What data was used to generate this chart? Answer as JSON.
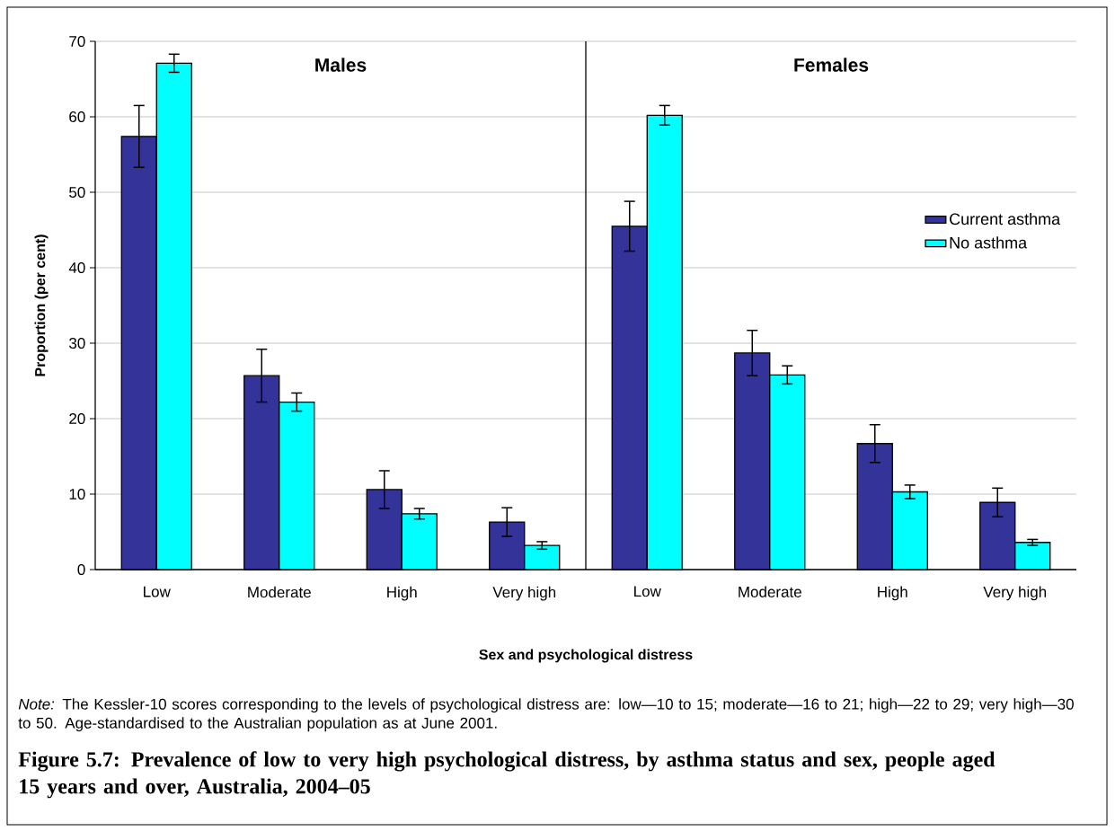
{
  "chart_data": [
    {
      "type": "bar",
      "title": "Males",
      "xlabel": "Sex and psychological distress",
      "ylabel": "Proportion (per cent)",
      "categories": [
        "Low",
        "Moderate",
        "High",
        "Very high"
      ],
      "series": [
        {
          "color": "#333399",
          "values": [
            57.4,
            25.7,
            10.6,
            6.3
          ],
          "errors": [
            4.1,
            3.5,
            2.5,
            1.9
          ]
        },
        {
          "color": "#00ffff",
          "values": [
            67.1,
            22.2,
            7.4,
            3.2
          ],
          "errors": [
            1.2,
            1.2,
            0.7,
            0.5
          ]
        }
      ],
      "ylim": [
        0,
        70
      ],
      "yticks": [
        0,
        10,
        20,
        30,
        40,
        50,
        60,
        70
      ],
      "grid": "y",
      "legend": false,
      "annotations": [
        "*Note:* The Kessler-10 scores corresponding to the levels of psychological distress are: low—10 to 15; moderate—16 to 21; high—22 to 29; very high—30 to 50. Age-standardised to the Australian population as at June 2001.",
        "Figure 5.7: Prevalence of low to very high psychological distress, by asthma status and sex, people aged 15 years and over, Australia, 2004–05"
      ]
    },
    {
      "type": "bar",
      "title": "Females",
      "categories": [
        "Low",
        "Moderate",
        "High",
        "Very high"
      ],
      "series": [
        {
          "name": "Current asthma",
          "color": "#333399",
          "values": [
            45.5,
            28.7,
            16.7,
            8.9
          ],
          "errors": [
            3.3,
            3.0,
            2.5,
            1.9
          ]
        },
        {
          "name": "No asthma",
          "color": "#00ffff",
          "values": [
            60.2,
            25.8,
            10.3,
            3.6
          ],
          "errors": [
            1.3,
            1.2,
            0.9,
            0.4
          ]
        }
      ],
      "ylim": [
        0,
        70
      ],
      "yticks": [
        0,
        10,
        20,
        30,
        40,
        50,
        60,
        70
      ],
      "grid": "y",
      "legend": "right",
      "tick_labels": "x"
    }
  ]
}
